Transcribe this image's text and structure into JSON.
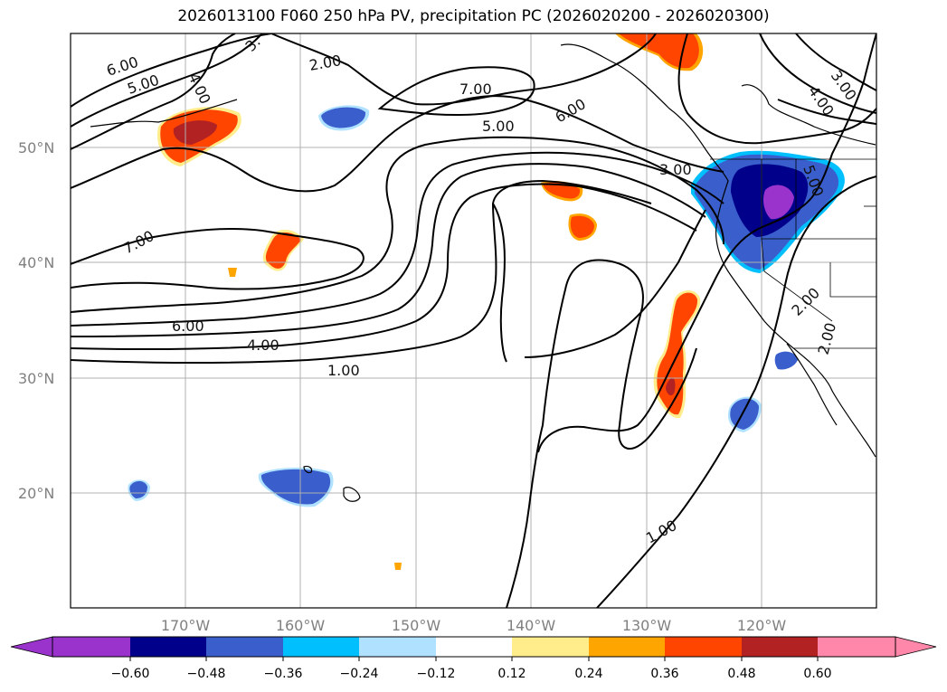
{
  "title": "2026013100 F060 250 hPa PV, precipitation PC (2026020200 - 2026020300)",
  "lat_labels": [
    "50°N",
    "40°N",
    "30°N",
    "20°N"
  ],
  "lon_labels": [
    "170°W",
    "160°W",
    "150°W",
    "140°W",
    "130°W",
    "120°W"
  ],
  "contour_labels": [
    "6.00",
    "5.00",
    "4.00",
    "3.",
    "2.00",
    "7.00",
    "6.00",
    "5.00",
    "3.00",
    "5.00",
    "4.00",
    "3.00",
    "7.00",
    "6.00",
    "4.00",
    "1.00",
    "2.00",
    "2.00",
    "1.00"
  ],
  "colorbar": {
    "ticks": [
      "−0.60",
      "−0.48",
      "−0.36",
      "−0.24",
      "−0.12",
      "0.12",
      "0.24",
      "0.36",
      "0.48",
      "0.60"
    ],
    "colors": [
      "#9933cc",
      "#00008b",
      "#3a5fcd",
      "#00bfff",
      "#b0e2ff",
      "#ffffff",
      "#ffec8b",
      "#ffa500",
      "#ff4500",
      "#b22222",
      "#ff88aa"
    ]
  }
}
